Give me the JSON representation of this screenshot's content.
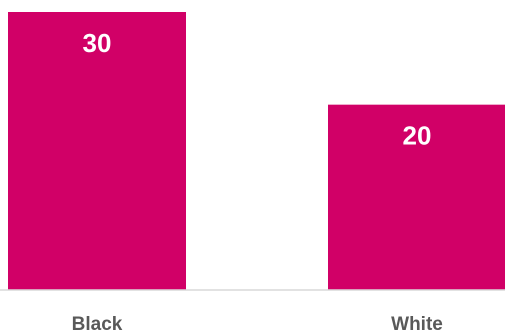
{
  "colors": {
    "bar": "#d10067",
    "axis": "#d9d9d9",
    "label_text": "#ffffff",
    "category_text": "#595959"
  },
  "chart_data": {
    "type": "bar",
    "categories": [
      "Black",
      "White"
    ],
    "values": [
      30,
      20
    ],
    "data_labels": [
      "30",
      "20"
    ],
    "ylim": [
      0,
      30
    ],
    "grid": false,
    "legend": "none"
  }
}
